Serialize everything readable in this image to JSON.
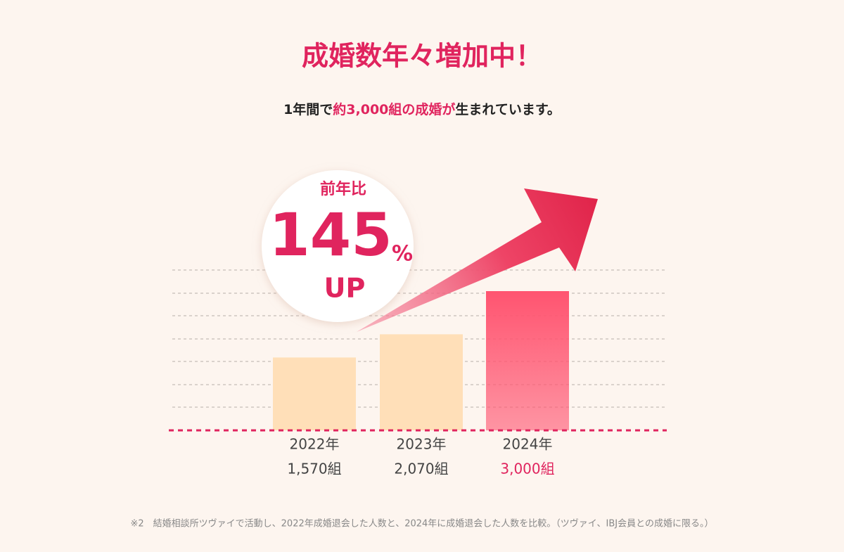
{
  "chart_data": {
    "type": "bar",
    "title": "成婚数年々増加中！",
    "subtitle": [
      "1年間で",
      "約3,000組の成婚が",
      "生まれています。"
    ],
    "subtitle_colors": [
      "#222222",
      "#e0245e",
      "#222222"
    ],
    "badge": {
      "caption": "前年比",
      "number": "145",
      "unit": "%",
      "suffix": "UP"
    },
    "categories": [
      "2022年",
      "2023年",
      "2024年"
    ],
    "values": [
      1570,
      2070,
      3000
    ],
    "value_labels": [
      "1,570組",
      "2,070組",
      "3,000組"
    ],
    "colors": [
      "#ffdfb8",
      "#ffdfb8",
      "#ff5470"
    ],
    "label_colors": [
      "#444444",
      "#444444",
      "#e0245e"
    ],
    "footnote": "※2　結婚相談所ツヴァイで活動し、2022年成婚退会した人数と、2024年に成婚退会した人数を比較。（ツヴァイ、IBJ会員との成婚に限る。）"
  }
}
